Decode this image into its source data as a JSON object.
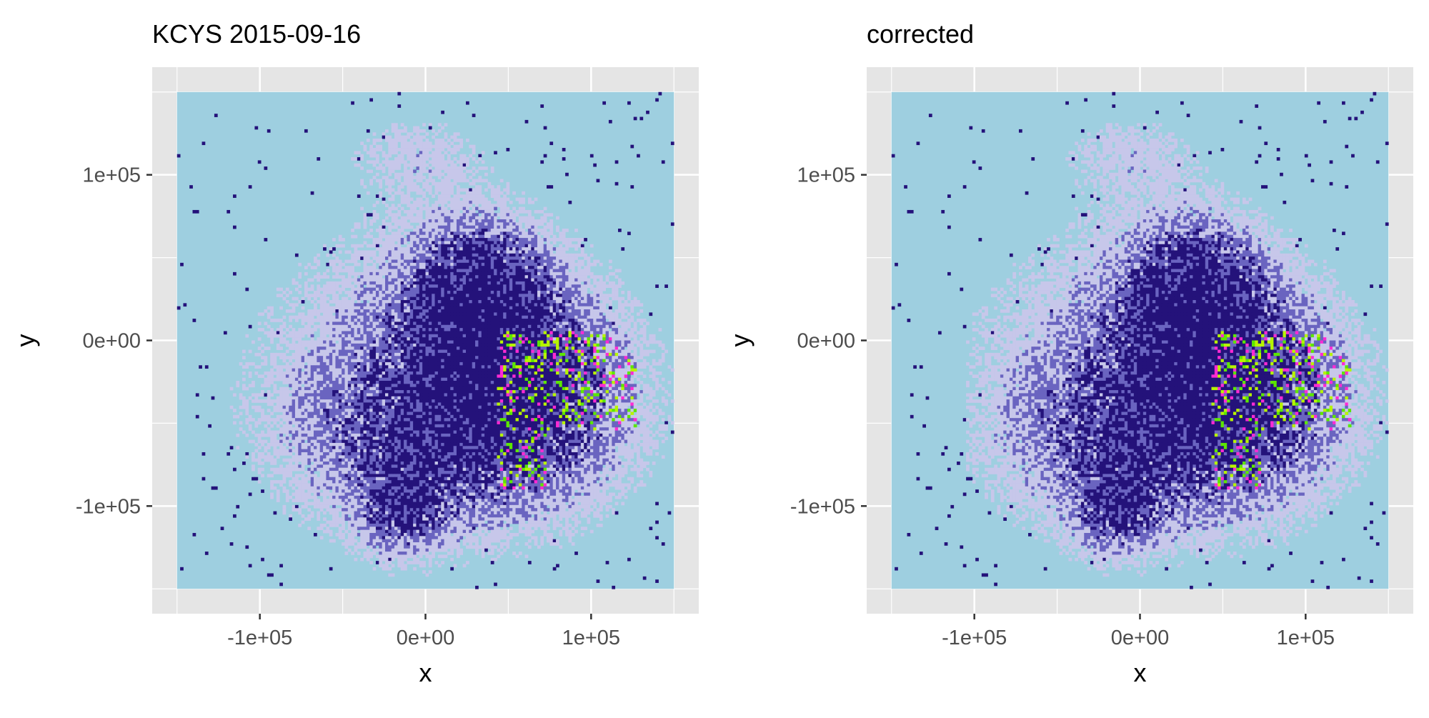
{
  "chart_data": [
    {
      "type": "heatmap",
      "title": "KCYS 2015-09-16",
      "xlabel": "x",
      "ylabel": "y",
      "x_ticks": [
        -100000,
        0,
        100000
      ],
      "y_ticks": [
        100000,
        0,
        -100000
      ],
      "x_tick_labels": [
        "-1e+05",
        "0e+00",
        "1e+05"
      ],
      "y_tick_labels": [
        "1e+05",
        "0e+00",
        "-1e+05"
      ],
      "xlim": [
        -165000,
        165000
      ],
      "ylim": [
        -165000,
        165000
      ],
      "raster_extent": {
        "x": [
          -150000,
          150000
        ],
        "y": [
          -150000,
          150000
        ]
      },
      "grid": true,
      "legend": "none",
      "raster_description_colors": {
        "background": "#9ecfe0",
        "low": "#c7c7ea",
        "mid": "#6a64c0",
        "high": "#24127a",
        "lime": "#b6f400",
        "green": "#5ce600",
        "magenta": "#ff2ad4"
      }
    },
    {
      "type": "heatmap",
      "title": "corrected",
      "xlabel": "x",
      "ylabel": "y",
      "x_ticks": [
        -100000,
        0,
        100000
      ],
      "y_ticks": [
        100000,
        0,
        -100000
      ],
      "x_tick_labels": [
        "-1e+05",
        "0e+00",
        "1e+05"
      ],
      "y_tick_labels": [
        "1e+05",
        "0e+00",
        "-1e+05"
      ],
      "xlim": [
        -165000,
        165000
      ],
      "ylim": [
        -165000,
        165000
      ],
      "raster_extent": {
        "x": [
          -150000,
          150000
        ],
        "y": [
          -150000,
          150000
        ]
      },
      "grid": true,
      "legend": "none",
      "raster_description_colors": {
        "background": "#9ecfe0",
        "low": "#c7c7ea",
        "mid": "#6a64c0",
        "high": "#24127a",
        "lime": "#b6f400",
        "green": "#5ce600",
        "magenta": "#ff2ad4"
      }
    }
  ],
  "colors": {
    "panel_background": "#e5e5e5",
    "grid_major": "#ffffff",
    "tick_text": "#4d4d4d",
    "title_text": "#000000"
  }
}
